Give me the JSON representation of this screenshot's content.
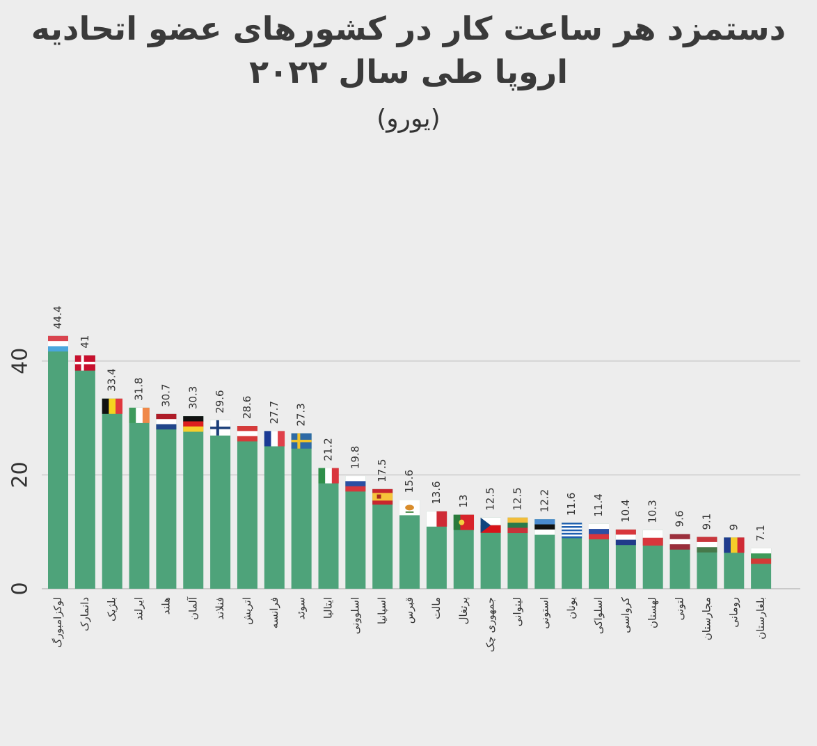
{
  "title": "دستمزد هر ساعت کار در کشورهای عضو اتحادیه اروپا طی سال ۲۰۲۲",
  "subtitle": "(یورو)",
  "colors": {
    "background": "#ededed",
    "bar": "#4ea37a",
    "grid": "#d4d4d4",
    "baseline": "#c9c9c9",
    "text": "#333333"
  },
  "chart_data": {
    "type": "bar",
    "categories": [
      "لوکزامبورگ",
      "دانمارک",
      "بلژیک",
      "ایرلند",
      "هلند",
      "آلمان",
      "فنلاند",
      "اتریش",
      "فرانسه",
      "سوئد",
      "ایتالیا",
      "اسلوونی",
      "اسپانیا",
      "قبرس",
      "مالت",
      "پرتغال",
      "جمهوری چک",
      "لیتوانی",
      "استونی",
      "یونان",
      "اسلواکی",
      "کرواسی",
      "لهستان",
      "لتونی",
      "مجارستان",
      "رومانی",
      "بلغارستان"
    ],
    "values": [
      44.4,
      41,
      33.4,
      31.8,
      30.7,
      30.3,
      29.6,
      28.6,
      27.7,
      27.3,
      21.2,
      19.8,
      17.5,
      15.6,
      13.6,
      13,
      12.5,
      12.5,
      12.2,
      11.6,
      11.4,
      10.4,
      10.3,
      9.6,
      9.1,
      9,
      7.1
    ],
    "value_labels": [
      "44.4",
      "41",
      "33.4",
      "31.8",
      "30.7",
      "30.3",
      "29.6",
      "28.6",
      "27.7",
      "27.3",
      "21.2",
      "19.8",
      "17.5",
      "15.6",
      "13.6",
      "13",
      "12.5",
      "12.5",
      "12.2",
      "11.6",
      "11.4",
      "10.4",
      "10.3",
      "9.6",
      "9.1",
      "9",
      "7.1"
    ],
    "flags": [
      "luxembourg-flag",
      "denmark-flag",
      "belgium-flag",
      "ireland-flag",
      "netherlands-flag",
      "germany-flag",
      "finland-flag",
      "austria-flag",
      "france-flag",
      "sweden-flag",
      "italy-flag",
      "slovenia-flag",
      "spain-flag",
      "cyprus-flag",
      "malta-flag",
      "portugal-flag",
      "czech-flag",
      "lithuania-flag",
      "estonia-flag",
      "greece-flag",
      "slovakia-flag",
      "croatia-flag",
      "poland-flag",
      "latvia-flag",
      "hungary-flag",
      "romania-flag",
      "bulgaria-flag"
    ],
    "yticks": [
      "0",
      "20",
      "40"
    ],
    "ylim": [
      0,
      45
    ],
    "grid": true
  }
}
